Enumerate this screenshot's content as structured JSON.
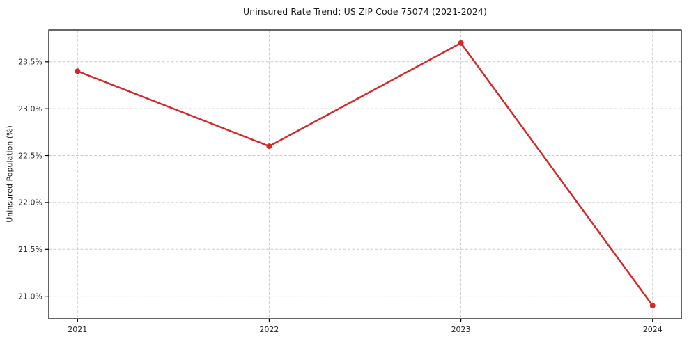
{
  "chart_data": {
    "type": "line",
    "title": "Uninsured Rate Trend: US ZIP Code 75074 (2021-2024)",
    "xlabel": "",
    "ylabel": "Uninsured Population (%)",
    "x": [
      2021,
      2022,
      2023,
      2024
    ],
    "values": [
      23.4,
      22.6,
      23.7,
      20.9
    ],
    "xticks": [
      {
        "v": 2021,
        "label": "2021"
      },
      {
        "v": 2022,
        "label": "2022"
      },
      {
        "v": 2023,
        "label": "2023"
      },
      {
        "v": 2024,
        "label": "2024"
      }
    ],
    "yticks": [
      {
        "v": 21.0,
        "label": "21.0%"
      },
      {
        "v": 21.5,
        "label": "21.5%"
      },
      {
        "v": 22.0,
        "label": "22.0%"
      },
      {
        "v": 22.5,
        "label": "22.5%"
      },
      {
        "v": 23.0,
        "label": "23.0%"
      },
      {
        "v": 23.5,
        "label": "23.5%"
      }
    ],
    "xlim": [
      2020.85,
      2024.15
    ],
    "ylim": [
      20.76,
      23.84
    ],
    "grid": "dashed-both",
    "legend": "none",
    "marker": "circle",
    "colors": {
      "line": "#d62728",
      "marker": "#d62728",
      "grid": "#cccccc",
      "spine": "#000000",
      "tick_text": "#262626",
      "background": "#ffffff"
    }
  }
}
